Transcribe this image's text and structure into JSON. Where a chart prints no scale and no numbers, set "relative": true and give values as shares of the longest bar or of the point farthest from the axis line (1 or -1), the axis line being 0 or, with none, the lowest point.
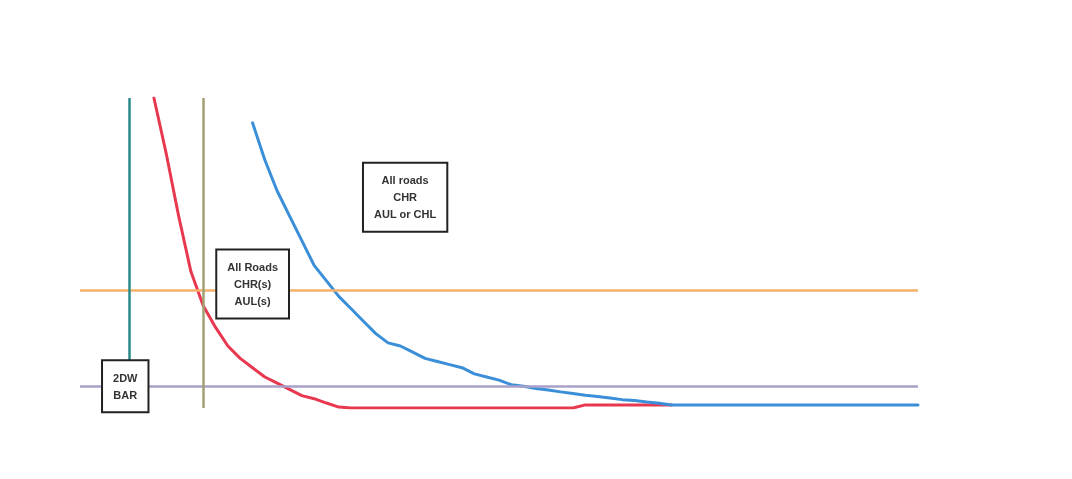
{
  "chart_data": {
    "type": "line",
    "relative": true,
    "marker": "none",
    "line_style": "solid",
    "categories": [
      null,
      null,
      null,
      null,
      null,
      null,
      null,
      null,
      null,
      null,
      null,
      null,
      null,
      null,
      null,
      null,
      null,
      null,
      null,
      null,
      null,
      null,
      null,
      null,
      null,
      null,
      null,
      null,
      null,
      null,
      null,
      null,
      null,
      null,
      null,
      null,
      null,
      null,
      null,
      null,
      null,
      null,
      null,
      null,
      null,
      null,
      null,
      null,
      null,
      null,
      null,
      null,
      null,
      null,
      null,
      null,
      null,
      null,
      null,
      null,
      null,
      null,
      null,
      null,
      null,
      null,
      null,
      null,
      null
    ],
    "series": [
      {
        "color": "#e8384f",
        "values": [
          null,
          null,
          null,
          null,
          null,
          null,
          1,
          0.82,
          0.62,
          0.44,
          0.33,
          0.26,
          0.2,
          0.16,
          0.13,
          0.1,
          0.08,
          0.06,
          0.04,
          0.03,
          0.016,
          0.003,
          0,
          0,
          0,
          0,
          0,
          0,
          0,
          0,
          0,
          0,
          0,
          0,
          0,
          0,
          0,
          0,
          0,
          0,
          0,
          0.01,
          0.01,
          0.01,
          0.01,
          0.01,
          0.01,
          0.01,
          0.01,
          null,
          null,
          null,
          null,
          null,
          null,
          null,
          null,
          null,
          null,
          null,
          null,
          null,
          null,
          null,
          null,
          null,
          null,
          null,
          null
        ]
      },
      {
        "color": "#3a8fd8",
        "values": [
          null,
          null,
          null,
          null,
          null,
          null,
          null,
          null,
          null,
          null,
          null,
          null,
          null,
          null,
          0.92,
          0.8,
          0.7,
          0.62,
          0.54,
          0.46,
          0.41,
          0.36,
          0.32,
          0.28,
          0.24,
          0.21,
          0.2,
          0.18,
          0.16,
          0.15,
          0.14,
          0.13,
          0.11,
          0.1,
          0.09,
          0.075,
          0.07,
          0.063,
          0.058,
          0.052,
          0.047,
          0.041,
          0.037,
          0.032,
          0.027,
          0.024,
          0.019,
          0.015,
          0.01,
          0.01,
          0.01,
          0.01,
          0.01,
          0.01,
          0.01,
          0.01,
          0.01,
          0.01,
          0.01,
          0.01,
          0.01,
          0.01,
          0.01,
          0.01,
          0.01,
          0.01,
          0.01,
          0.01,
          0.01
        ]
      }
    ],
    "ref_lines": [
      {
        "axis": "y",
        "value": 0.381,
        "color": "#f5b06a"
      },
      {
        "axis": "y",
        "value": 0.074,
        "color": "#a8a0c8"
      }
    ],
    "annotations": [
      "All roads\nCHR\nAUL or CHL",
      "All Roads\nCHR(s)\nAUL(s)",
      "2DW\nBAR"
    ]
  }
}
